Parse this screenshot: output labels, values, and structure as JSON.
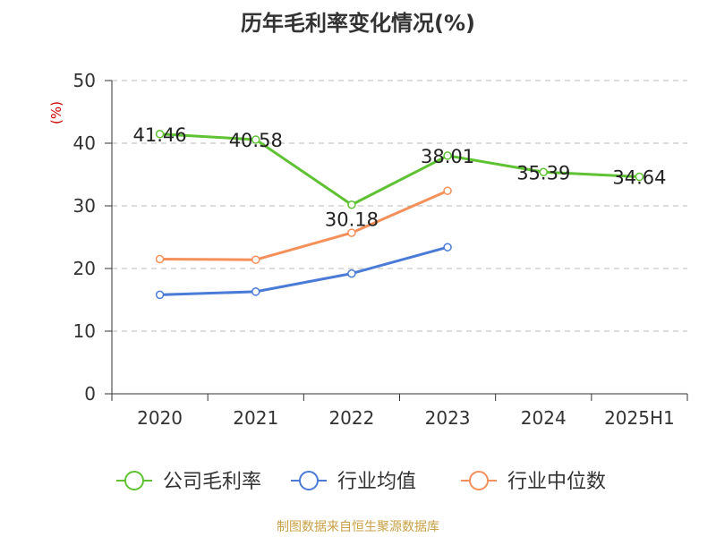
{
  "title": "历年毛利率变化情况(%)",
  "source": "制图数据来自恒生聚源数据库",
  "chart_data": {
    "type": "line",
    "title": "历年毛利率变化情况(%)",
    "ylabel": "(%)",
    "xlabel": "",
    "ylim": [
      0,
      50
    ],
    "yticks": [
      0,
      10,
      20,
      30,
      40,
      50
    ],
    "grid": true,
    "legend_position": "bottom",
    "categories": [
      "2020",
      "2021",
      "2022",
      "2023",
      "2024",
      "2025H1"
    ],
    "series": [
      {
        "name": "公司毛利率",
        "color": "#5ec232",
        "values": [
          41.46,
          40.58,
          30.18,
          38.01,
          35.39,
          34.64
        ],
        "labels": [
          "41.46",
          "40.58",
          "30.18",
          "38.01",
          "35.39",
          "34.64"
        ]
      },
      {
        "name": "行业均值",
        "color": "#4a7bd6",
        "values": [
          15.8,
          16.3,
          19.2,
          23.4,
          null,
          null
        ]
      },
      {
        "name": "行业中位数",
        "color": "#f5905a",
        "values": [
          21.5,
          21.4,
          25.7,
          32.4,
          null,
          null
        ]
      }
    ]
  }
}
